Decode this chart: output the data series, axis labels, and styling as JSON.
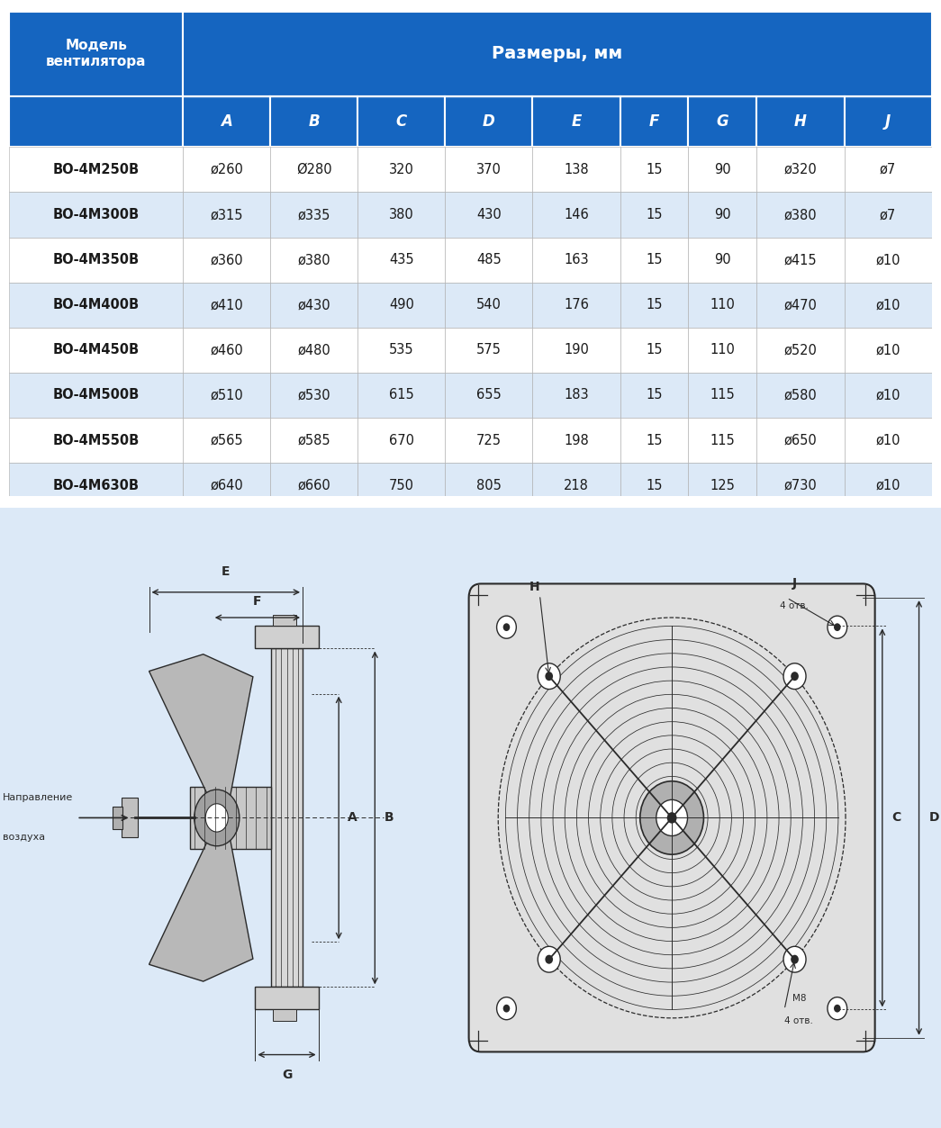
{
  "title_col": "Модель\nвентилятора",
  "header_main": "Размеры, мм",
  "col_headers": [
    "A",
    "B",
    "C",
    "D",
    "E",
    "F",
    "G",
    "H",
    "J"
  ],
  "rows": [
    [
      "ВО-4М250В",
      "ø260",
      "Ø280",
      "320",
      "370",
      "138",
      "15",
      "90",
      "ø320",
      "ø7"
    ],
    [
      "ВО-4М300В",
      "ø315",
      "ø335",
      "380",
      "430",
      "146",
      "15",
      "90",
      "ø380",
      "ø7"
    ],
    [
      "ВО-4М350В",
      "ø360",
      "ø380",
      "435",
      "485",
      "163",
      "15",
      "90",
      "ø415",
      "ø10"
    ],
    [
      "ВО-4М400В",
      "ø410",
      "ø430",
      "490",
      "540",
      "176",
      "15",
      "110",
      "ø470",
      "ø10"
    ],
    [
      "ВО-4М450В",
      "ø460",
      "ø480",
      "535",
      "575",
      "190",
      "15",
      "110",
      "ø520",
      "ø10"
    ],
    [
      "ВО-4М500В",
      "ø510",
      "ø530",
      "615",
      "655",
      "183",
      "15",
      "115",
      "ø580",
      "ø10"
    ],
    [
      "ВО-4М550В",
      "ø565",
      "ø585",
      "670",
      "725",
      "198",
      "15",
      "115",
      "ø650",
      "ø10"
    ],
    [
      "ВО-4М630В",
      "ø640",
      "ø660",
      "750",
      "805",
      "218",
      "15",
      "125",
      "ø730",
      "ø10"
    ]
  ],
  "header_bg": "#1565C0",
  "header_text": "#FFFFFF",
  "row_bg_light": "#FFFFFF",
  "row_bg_blue": "#DCE9F7",
  "border_color": "#AAAAAA",
  "text_color": "#1a1a1a",
  "diagram_bg": "#DCE9F7",
  "diagram_line_color": "#2a2a2a"
}
